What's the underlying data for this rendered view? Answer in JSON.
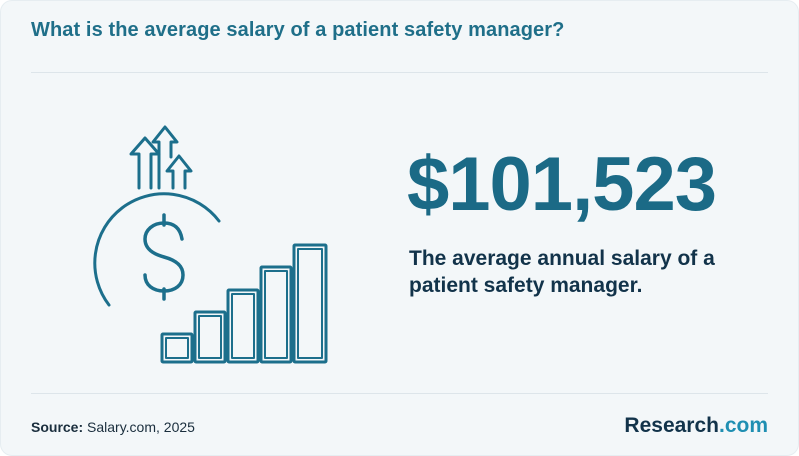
{
  "header": {
    "title": "What is the average salary of a patient safety manager?"
  },
  "main": {
    "amount": "$101,523",
    "description": "The average annual salary of a patient safety manager.",
    "illustration_icon": "salary-growth-icon"
  },
  "footer": {
    "source_label": "Source:",
    "source_value": "Salary.com, 2025",
    "brand_name": "Research",
    "brand_suffix": ".com"
  },
  "colors": {
    "accent": "#1b6a86",
    "title": "#1f6f89",
    "text": "#12334a",
    "brand_accent": "#1f8fb2",
    "background": "#f3f7f9"
  }
}
